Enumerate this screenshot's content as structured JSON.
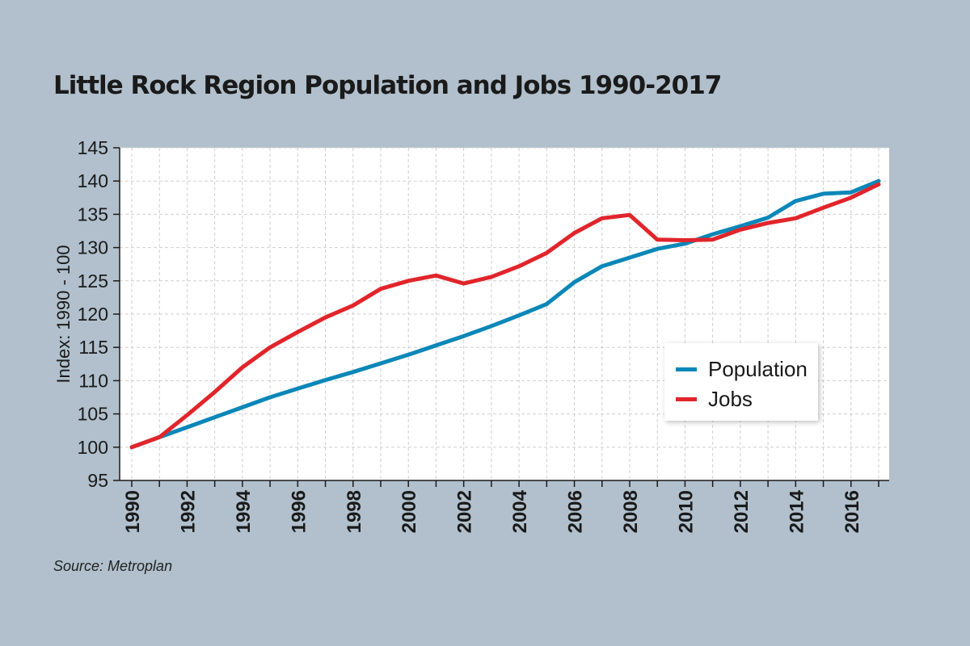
{
  "title": "Little Rock Region Population and Jobs 1990-2017",
  "source": "Source: Metroplan",
  "colors": {
    "background": "#b1c0cc",
    "population": "#0a87b8",
    "jobs": "#e1252b",
    "plot_bg": "#ffffff",
    "grid": "#cfcfcf"
  },
  "legend": {
    "population_label": "Population",
    "jobs_label": "Jobs"
  },
  "chart_data": {
    "type": "line",
    "title": "Little Rock Region Population and Jobs 1990-2017",
    "xlabel": "",
    "ylabel": "Index: 1990 - 100",
    "ylim": [
      95,
      145
    ],
    "xlim": [
      1990,
      2017
    ],
    "yticks": [
      95,
      100,
      105,
      110,
      115,
      120,
      125,
      130,
      135,
      140,
      145
    ],
    "xtick_labels": [
      "1990",
      "1992",
      "1994",
      "1996",
      "1998",
      "2000",
      "2002",
      "2004",
      "2006",
      "2008",
      "2010",
      "2012",
      "2014",
      "2016"
    ],
    "grid": true,
    "legend_position": "right",
    "x": [
      1990,
      1991,
      1992,
      1993,
      1994,
      1995,
      1996,
      1997,
      1998,
      1999,
      2000,
      2001,
      2002,
      2003,
      2004,
      2005,
      2006,
      2007,
      2008,
      2009,
      2010,
      2011,
      2012,
      2013,
      2014,
      2015,
      2016,
      2017
    ],
    "series": [
      {
        "name": "Population",
        "values": [
          100,
          101.5,
          103,
          104.5,
          106,
          107.5,
          108.8,
          110.1,
          111.3,
          112.6,
          113.9,
          115.3,
          116.7,
          118.2,
          119.8,
          121.5,
          124.8,
          127.2,
          128.5,
          129.8,
          130.6,
          132,
          133.2,
          134.5,
          137,
          138.1,
          138.3,
          140
        ]
      },
      {
        "name": "Jobs",
        "values": [
          100,
          101.5,
          104.8,
          108.3,
          112,
          115,
          117.3,
          119.5,
          121.3,
          123.8,
          125,
          125.8,
          124.6,
          125.6,
          127.2,
          129.2,
          132.2,
          134.4,
          134.9,
          131.2,
          131.1,
          131.2,
          132.7,
          133.7,
          134.4,
          136,
          137.5,
          139.5
        ]
      }
    ]
  }
}
